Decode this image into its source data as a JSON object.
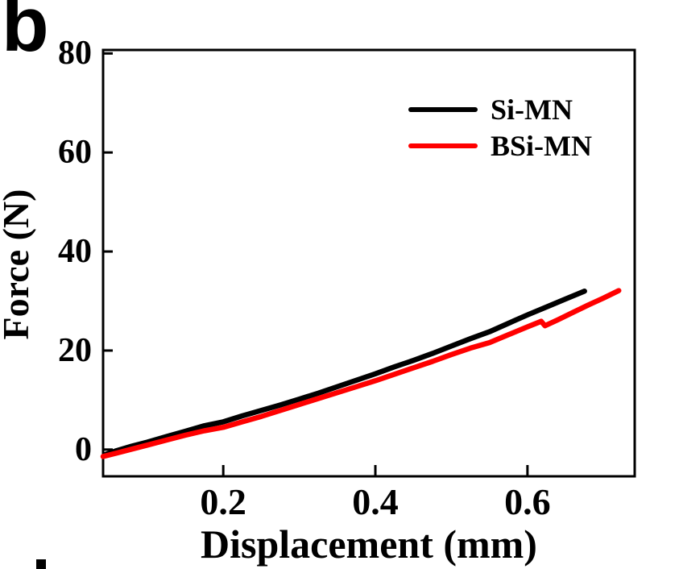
{
  "panel": {
    "label": "b",
    "next_panel_partial": "partial top edge of next panel label visible at bottom-left"
  },
  "colors": {
    "background": "#ffffff",
    "axis": "#000000",
    "series_si_mn": "#000000",
    "series_bsi_mn": "#ff0000"
  },
  "chart_data": {
    "type": "line",
    "title": "",
    "xlabel": "Displacement (mm)",
    "ylabel": "Force (N)",
    "xlim": [
      0.042,
      0.741
    ],
    "ylim": [
      -5.4,
      80.7
    ],
    "x_ticks": [
      0.2,
      0.4,
      0.6
    ],
    "x_tick_labels": [
      "0.2",
      "0.4",
      "0.6"
    ],
    "y_ticks": [
      0,
      20,
      40,
      60,
      80
    ],
    "y_tick_labels": [
      "0",
      "20",
      "40",
      "60",
      "80"
    ],
    "grid": false,
    "frame": "full-box",
    "tick_direction": "in",
    "legend_position": "top-right-inside",
    "series": [
      {
        "name": "Si-MN",
        "color": "#000000",
        "points": [
          [
            0.045,
            -1.0
          ],
          [
            0.06,
            -0.2
          ],
          [
            0.08,
            0.7
          ],
          [
            0.1,
            1.5
          ],
          [
            0.125,
            2.6
          ],
          [
            0.15,
            3.7
          ],
          [
            0.175,
            4.8
          ],
          [
            0.2,
            5.6
          ],
          [
            0.225,
            6.8
          ],
          [
            0.25,
            7.9
          ],
          [
            0.275,
            9.0
          ],
          [
            0.3,
            10.2
          ],
          [
            0.325,
            11.4
          ],
          [
            0.35,
            12.7
          ],
          [
            0.375,
            14.0
          ],
          [
            0.4,
            15.3
          ],
          [
            0.425,
            16.7
          ],
          [
            0.45,
            18.0
          ],
          [
            0.475,
            19.4
          ],
          [
            0.5,
            20.9
          ],
          [
            0.525,
            22.4
          ],
          [
            0.55,
            23.8
          ],
          [
            0.575,
            25.5
          ],
          [
            0.6,
            27.2
          ],
          [
            0.625,
            28.8
          ],
          [
            0.65,
            30.4
          ],
          [
            0.675,
            32.0
          ]
        ]
      },
      {
        "name": "BSi-MN",
        "color": "#ff0000",
        "points": [
          [
            0.042,
            -1.4
          ],
          [
            0.06,
            -0.7
          ],
          [
            0.08,
            0.1
          ],
          [
            0.1,
            0.9
          ],
          [
            0.125,
            1.9
          ],
          [
            0.15,
            2.9
          ],
          [
            0.175,
            3.8
          ],
          [
            0.2,
            4.5
          ],
          [
            0.225,
            5.6
          ],
          [
            0.25,
            6.7
          ],
          [
            0.275,
            7.9
          ],
          [
            0.3,
            9.1
          ],
          [
            0.325,
            10.3
          ],
          [
            0.35,
            11.5
          ],
          [
            0.375,
            12.7
          ],
          [
            0.4,
            13.9
          ],
          [
            0.425,
            15.2
          ],
          [
            0.45,
            16.5
          ],
          [
            0.475,
            17.8
          ],
          [
            0.5,
            19.2
          ],
          [
            0.525,
            20.5
          ],
          [
            0.55,
            21.6
          ],
          [
            0.575,
            23.2
          ],
          [
            0.6,
            24.8
          ],
          [
            0.618,
            25.9
          ],
          [
            0.623,
            25.0
          ],
          [
            0.64,
            26.2
          ],
          [
            0.66,
            27.7
          ],
          [
            0.68,
            29.2
          ],
          [
            0.7,
            30.6
          ],
          [
            0.72,
            32.1
          ]
        ]
      }
    ]
  }
}
